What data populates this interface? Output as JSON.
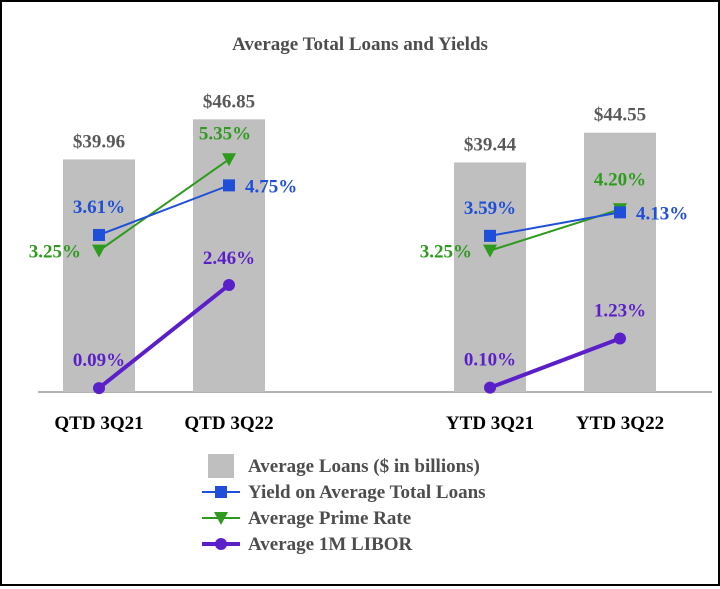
{
  "chart_data": {
    "type": "bar+line",
    "title": "Average Total Loans and Yields",
    "categories": [
      "QTD 3Q21",
      "QTD 3Q22",
      "YTD 3Q21",
      "YTD 3Q22"
    ],
    "groups": [
      [
        "QTD 3Q21",
        "QTD 3Q22"
      ],
      [
        "YTD 3Q21",
        "YTD 3Q22"
      ]
    ],
    "bars": {
      "name": "Average Loans ($ in billions)",
      "values": [
        39.96,
        46.85,
        39.44,
        44.55
      ],
      "labels": [
        "$39.96",
        "$46.85",
        "$39.44",
        "$44.55"
      ],
      "color": "#bfbfbf"
    },
    "lines": [
      {
        "name": "Yield on Average Total Loans",
        "values": [
          3.61,
          4.75,
          3.59,
          4.13
        ],
        "labels": [
          "3.61%",
          "4.75%",
          "3.59%",
          "4.13%"
        ],
        "color": "#1f4fd8",
        "marker": "square"
      },
      {
        "name": "Average Prime Rate",
        "values": [
          3.25,
          5.35,
          3.25,
          4.2
        ],
        "labels": [
          "3.25%",
          "5.35%",
          "3.25%",
          "4.20%"
        ],
        "color": "#2e9a1e",
        "marker": "triangle-down"
      },
      {
        "name": "Average 1M LIBOR",
        "values": [
          0.09,
          2.46,
          0.1,
          1.23
        ],
        "labels": [
          "0.09%",
          "2.46%",
          "0.10%",
          "1.23%"
        ],
        "color": "#5b1fc9",
        "marker": "circle"
      }
    ],
    "legend_position": "bottom-center",
    "grid": false
  }
}
